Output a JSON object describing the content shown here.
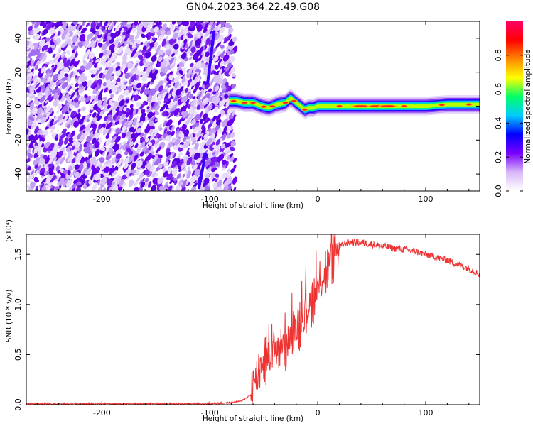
{
  "title": "GN04.2023.364.22.49.G08",
  "colorbar": {
    "label": "Normalized spectral amplitude",
    "ticks": [
      "0.0",
      "0.2",
      "0.4",
      "0.6",
      "0.8"
    ],
    "tick_values": [
      0,
      0.2,
      0.4,
      0.6,
      0.8
    ],
    "range": [
      0,
      1
    ],
    "colors": [
      "#ffffff",
      "#d8b8f8",
      "#7a00ff",
      "#0000ff",
      "#00ccff",
      "#00ff66",
      "#ffff00",
      "#ff8800",
      "#ff0000",
      "#ff0066"
    ]
  },
  "chart_data": [
    {
      "type": "heatmap",
      "xlabel": "Height of straight line (km)",
      "ylabel": "Frequency (Hz)",
      "xlim": [
        -270,
        150
      ],
      "ylim": [
        -50,
        50
      ],
      "xticks": [
        "-200",
        "-100",
        "0",
        "100"
      ],
      "xtick_values": [
        -200,
        -100,
        0,
        100
      ],
      "yticks": [
        "-40",
        "-20",
        "0",
        "20",
        "40"
      ],
      "ytick_values": [
        -40,
        -20,
        0,
        20,
        40
      ],
      "noise_region_x": [
        -270,
        -82
      ],
      "streaks": [
        {
          "x": [
            -102,
            -96
          ],
          "y": [
            14,
            44
          ]
        },
        {
          "x": [
            -110,
            -104
          ],
          "y": [
            -48,
            -28
          ]
        }
      ],
      "ridge": {
        "x": [
          -82,
          -75,
          -68,
          -60,
          -52,
          -45,
          -38,
          -30,
          -25,
          -22,
          -18,
          -12,
          -8,
          -4,
          0,
          10,
          20,
          40,
          60,
          80,
          100,
          120,
          140,
          150
        ],
        "y": [
          3,
          3,
          2,
          2,
          0,
          -1,
          1,
          2,
          5,
          3,
          1,
          -2,
          -1,
          -1,
          0,
          0,
          0,
          0,
          0,
          0,
          0,
          1,
          1,
          1
        ]
      }
    },
    {
      "type": "line",
      "xlabel": "Height of straight line (km)",
      "ylabel": "SNR (10 * v/v)",
      "multiplier": "(x10⁴)",
      "xlim": [
        -270,
        150
      ],
      "ylim": [
        0,
        1.7
      ],
      "xticks": [
        "-200",
        "-100",
        "0",
        "100"
      ],
      "xtick_values": [
        -200,
        -100,
        0,
        100
      ],
      "yticks": [
        "0.0",
        "0.5",
        "1.0",
        "1.5"
      ],
      "ytick_values": [
        0,
        0.5,
        1.0,
        1.5
      ],
      "color": "#ee3333",
      "x": [
        -270,
        -250,
        -200,
        -150,
        -100,
        -80,
        -70,
        -62,
        -58,
        -55,
        -50,
        -45,
        -40,
        -35,
        -30,
        -25,
        -20,
        -15,
        -10,
        -5,
        0,
        5,
        10,
        15,
        20,
        25,
        30,
        40,
        50,
        60,
        70,
        80,
        90,
        100,
        110,
        120,
        130,
        140,
        150
      ],
      "y": [
        0.01,
        0.01,
        0.01,
        0.01,
        0.01,
        0.02,
        0.04,
        0.1,
        0.25,
        0.35,
        0.45,
        0.52,
        0.55,
        0.58,
        0.62,
        0.68,
        0.75,
        0.85,
        0.95,
        1.05,
        1.15,
        1.28,
        1.4,
        1.5,
        1.57,
        1.61,
        1.62,
        1.62,
        1.6,
        1.58,
        1.56,
        1.55,
        1.53,
        1.5,
        1.47,
        1.44,
        1.4,
        1.36,
        1.3
      ]
    }
  ]
}
